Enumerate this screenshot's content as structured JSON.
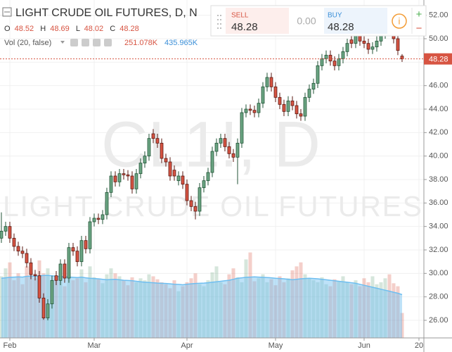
{
  "chart_data": {
    "type": "candlestick",
    "title": "LIGHT CRUDE OIL FUTURES, D, N",
    "watermark": [
      "CL1!, D",
      "LIGHT CRUDE OIL FUTURES"
    ],
    "ohlc_labels": [
      "O",
      "H",
      "L",
      "C"
    ],
    "volume_legend": {
      "name": "Vol (20, false)",
      "labels": [
        "251.078K",
        "435.965K"
      ]
    },
    "up_color": "#6ba583",
    "down_color": "#d75442",
    "up_border": "#225437",
    "down_border": "#5b1a13",
    "volume_ma_color": "#6ebef0",
    "grid": true,
    "open": [
      33.0,
      33.6,
      34.0,
      33.0,
      32.3,
      31.9,
      31.7,
      30.9,
      29.9,
      29.8,
      27.9,
      26.2,
      27.4,
      29.8,
      29.4,
      30.8,
      29.6,
      32.2,
      31.9,
      31.0,
      32.8,
      32.1,
      34.4,
      34.7,
      34.6,
      35.0,
      36.9,
      38.3,
      37.8,
      38.5,
      38.4,
      38.3,
      37.2,
      38.5,
      39.4,
      40.0,
      41.9,
      41.5,
      41.1,
      39.8,
      39.5,
      38.8,
      37.9,
      38.3,
      37.6,
      36.2,
      35.7,
      35.3,
      37.3,
      37.9,
      38.6,
      40.4,
      41.1,
      41.5,
      40.8,
      40.2,
      39.9,
      41.1,
      43.7,
      44.0,
      43.9,
      43.7,
      44.5,
      45.9,
      46.7,
      45.9,
      45.0,
      44.4,
      43.8,
      44.7,
      44.3,
      43.6,
      43.4,
      45.0,
      45.7,
      46.2,
      47.7,
      48.3,
      48.6,
      48.1,
      47.7,
      48.3,
      48.9,
      49.9,
      49.6,
      50.4,
      49.8,
      49.6,
      49.1,
      49.3,
      49.8,
      50.4,
      51.2,
      51.0,
      50.0,
      48.52
    ],
    "high": [
      35.2,
      34.4,
      34.4,
      33.4,
      32.7,
      32.3,
      32.1,
      31.3,
      30.3,
      30.2,
      28.3,
      27.8,
      29.8,
      30.2,
      31.2,
      31.2,
      32.6,
      32.6,
      32.3,
      33.2,
      33.2,
      34.8,
      35.1,
      35.1,
      35.4,
      37.3,
      38.7,
      38.7,
      38.9,
      38.9,
      38.8,
      38.7,
      38.9,
      39.8,
      40.4,
      41.9,
      42.3,
      41.9,
      41.5,
      40.2,
      39.9,
      39.2,
      38.7,
      38.7,
      38.0,
      36.6,
      36.1,
      37.7,
      38.3,
      39.0,
      40.8,
      41.5,
      41.9,
      41.9,
      41.2,
      40.6,
      41.5,
      44.1,
      44.4,
      44.4,
      44.3,
      44.9,
      46.3,
      47.1,
      47.1,
      46.3,
      45.4,
      44.8,
      45.1,
      45.1,
      44.7,
      44.0,
      45.4,
      46.1,
      46.6,
      48.1,
      48.7,
      49.0,
      49.0,
      48.5,
      48.7,
      49.3,
      50.0,
      50.3,
      50.8,
      50.8,
      50.2,
      50.0,
      49.7,
      50.2,
      50.8,
      51.6,
      51.6,
      51.4,
      50.4,
      48.69
    ],
    "low": [
      32.6,
      33.2,
      32.6,
      31.9,
      31.5,
      31.3,
      30.5,
      29.5,
      29.4,
      27.5,
      26.05,
      26.0,
      27.0,
      29.0,
      29.0,
      29.2,
      29.2,
      31.5,
      30.6,
      30.6,
      31.7,
      31.7,
      34.0,
      34.2,
      34.2,
      34.6,
      36.5,
      37.4,
      37.4,
      38.0,
      37.9,
      36.8,
      36.8,
      38.1,
      39.0,
      39.6,
      41.1,
      40.7,
      39.4,
      39.1,
      37.9,
      37.9,
      37.5,
      37.2,
      35.8,
      35.3,
      34.6,
      34.9,
      36.9,
      37.5,
      38.2,
      40.0,
      40.7,
      40.4,
      39.8,
      39.5,
      37.6,
      40.7,
      43.3,
      43.5,
      43.3,
      43.3,
      44.1,
      45.5,
      45.5,
      44.6,
      44.0,
      43.4,
      43.4,
      43.9,
      43.2,
      43.0,
      43.0,
      44.6,
      45.3,
      45.8,
      47.3,
      47.9,
      47.7,
      47.3,
      47.3,
      47.9,
      48.5,
      49.2,
      49.2,
      49.4,
      49.2,
      48.7,
      48.7,
      48.9,
      49.4,
      50.0,
      50.6,
      49.6,
      48.6,
      48.02
    ],
    "close": [
      33.6,
      34.0,
      33.0,
      32.3,
      31.9,
      31.7,
      30.9,
      29.9,
      29.8,
      27.9,
      26.2,
      27.4,
      29.4,
      29.4,
      30.8,
      29.6,
      32.2,
      31.9,
      31.0,
      32.8,
      32.1,
      34.4,
      34.7,
      34.6,
      35.0,
      36.9,
      38.3,
      37.8,
      38.5,
      38.4,
      38.3,
      37.2,
      38.5,
      39.4,
      40.0,
      41.5,
      41.5,
      41.1,
      39.8,
      39.5,
      38.3,
      38.3,
      38.3,
      37.6,
      36.2,
      35.7,
      35.3,
      37.3,
      37.9,
      38.6,
      40.4,
      41.1,
      41.5,
      40.8,
      40.2,
      39.9,
      41.1,
      43.7,
      44.0,
      43.9,
      43.7,
      44.5,
      45.9,
      46.7,
      45.9,
      45.0,
      44.4,
      43.8,
      44.7,
      44.3,
      43.6,
      43.4,
      45.0,
      45.7,
      46.2,
      47.7,
      48.3,
      48.6,
      48.1,
      47.7,
      48.3,
      48.9,
      49.6,
      49.6,
      50.4,
      49.8,
      49.6,
      49.1,
      49.3,
      49.8,
      50.4,
      51.2,
      51.0,
      50.0,
      49.0,
      48.28
    ],
    "volume": [
      620,
      700,
      760,
      580,
      650,
      540,
      720,
      690,
      600,
      780,
      650,
      700,
      560,
      590,
      610,
      520,
      640,
      580,
      600,
      690,
      560,
      720,
      610,
      590,
      550,
      640,
      700,
      650,
      620,
      580,
      530,
      610,
      560,
      600,
      580,
      640,
      620,
      590,
      560,
      540,
      500,
      580,
      470,
      520,
      560,
      600,
      650,
      540,
      520,
      580,
      660,
      720,
      560,
      540,
      640,
      700,
      610,
      560,
      790,
      860,
      570,
      600,
      640,
      560,
      590,
      530,
      620,
      560,
      600,
      680,
      720,
      760,
      640,
      600,
      580,
      560,
      610,
      540,
      520,
      590,
      570,
      620,
      560,
      540,
      580,
      520,
      600,
      560,
      620,
      540,
      560,
      600,
      640,
      550,
      520,
      251.078
    ],
    "volume_ma": [
      600,
      605,
      610,
      612,
      615,
      612,
      620,
      622,
      620,
      625,
      628,
      630,
      625,
      620,
      618,
      615,
      612,
      610,
      608,
      612,
      605,
      600,
      598,
      595,
      590,
      585,
      588,
      590,
      585,
      580,
      578,
      575,
      570,
      565,
      560,
      558,
      555,
      552,
      550,
      548,
      545,
      540,
      538,
      535,
      540,
      545,
      548,
      550,
      552,
      555,
      560,
      565,
      570,
      575,
      580,
      590,
      600,
      605,
      610,
      612,
      615,
      612,
      610,
      608,
      605,
      600,
      598,
      595,
      590,
      585,
      590,
      595,
      598,
      600,
      598,
      595,
      590,
      585,
      580,
      575,
      570,
      565,
      560,
      555,
      550,
      540,
      530,
      520,
      510,
      500,
      490,
      480,
      470,
      460,
      450,
      435.965
    ],
    "vlim": [
      0,
      3400
    ],
    "ylim": [
      24.5,
      53.3
    ],
    "yticks": [
      {
        "value": 26,
        "label": "26.00"
      },
      {
        "value": 28,
        "label": "28.00"
      },
      {
        "value": 30,
        "label": "30.00"
      },
      {
        "value": 32,
        "label": "32.00"
      },
      {
        "value": 34,
        "label": "34.00"
      },
      {
        "value": 36,
        "label": "36.00"
      },
      {
        "value": 38,
        "label": "38.00"
      },
      {
        "value": 40,
        "label": "40.00"
      },
      {
        "value": 42,
        "label": "42.00"
      },
      {
        "value": 44,
        "label": "44.00"
      },
      {
        "value": 46,
        "label": "46.00"
      },
      {
        "value": 48,
        "label": "48.00"
      },
      {
        "value": 50,
        "label": "50.00"
      },
      {
        "value": 52,
        "label": "52.00"
      }
    ],
    "xlim": [
      -0.33,
      100.17
    ],
    "xticks": [
      {
        "value": 2,
        "label": "Feb"
      },
      {
        "value": 22,
        "label": "Mar"
      },
      {
        "value": 44,
        "label": "Apr"
      },
      {
        "value": 65,
        "label": "May"
      },
      {
        "value": 86,
        "label": "Jun"
      },
      {
        "value": 99,
        "label": "20"
      }
    ]
  },
  "trade_panel": {
    "sell_label": "SELL",
    "sell_price": 48.28,
    "spread": "0.00",
    "buy_label": "BUY",
    "buy_price": 48.28,
    "info": "i",
    "plus": "+",
    "minus": "−"
  }
}
